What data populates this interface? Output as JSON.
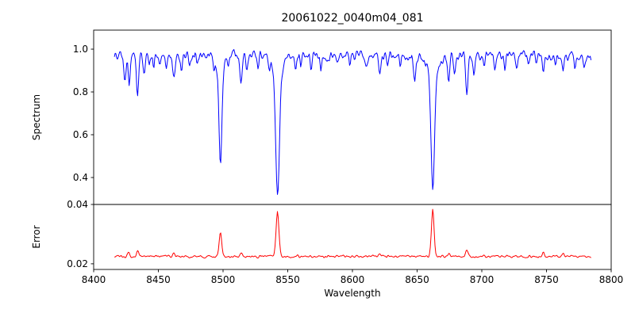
{
  "figure": {
    "title": "20061022_0040m04_081"
  },
  "chart_data": {
    "type": "line",
    "title": "20061022_0040m04_081",
    "xlabel": "Wavelength",
    "x_axis_range": [
      8400,
      8800
    ],
    "x_range": [
      8416,
      8785
    ],
    "x_ticks": [
      8400,
      8450,
      8500,
      8550,
      8600,
      8650,
      8700,
      8750,
      8800
    ],
    "x_tick_labels": [
      "8400",
      "8450",
      "8500",
      "8550",
      "8600",
      "8650",
      "8700",
      "8750",
      "8800"
    ],
    "grid": false,
    "legend": "none",
    "panels": [
      {
        "name": "spectrum",
        "ylabel": "Spectrum",
        "color": "#0000ff",
        "ylim": [
          0.274,
          1.089
        ],
        "y_ticks": [
          1.0,
          0.8,
          0.6,
          0.4
        ],
        "y_tick_labels": [
          "1.0",
          "0.8",
          "0.6",
          "0.4"
        ],
        "continuum": 0.97,
        "noise": 0.03,
        "absorption_lines": [
          {
            "c": 8498.0,
            "d": 0.42,
            "w": 1.1
          },
          {
            "c": 8498.0,
            "d": 0.07,
            "w": 3.0
          },
          {
            "c": 8542.1,
            "d": 0.56,
            "w": 1.4
          },
          {
            "c": 8542.1,
            "d": 0.1,
            "w": 4.0
          },
          {
            "c": 8662.1,
            "d": 0.55,
            "w": 1.3
          },
          {
            "c": 8662.1,
            "d": 0.1,
            "w": 4.0
          },
          {
            "c": 8424.0,
            "d": 0.1,
            "w": 0.8
          },
          {
            "c": 8427.5,
            "d": 0.14,
            "w": 0.7
          },
          {
            "c": 8434.0,
            "d": 0.18,
            "w": 0.9
          },
          {
            "c": 8439.0,
            "d": 0.08,
            "w": 0.7
          },
          {
            "c": 8443.0,
            "d": 0.05,
            "w": 0.6
          },
          {
            "c": 8446.5,
            "d": 0.07,
            "w": 0.6
          },
          {
            "c": 8451.0,
            "d": 0.05,
            "w": 0.6
          },
          {
            "c": 8456.0,
            "d": 0.07,
            "w": 0.7
          },
          {
            "c": 8462.0,
            "d": 0.11,
            "w": 0.8
          },
          {
            "c": 8468.0,
            "d": 0.08,
            "w": 0.7
          },
          {
            "c": 8474.0,
            "d": 0.06,
            "w": 0.6
          },
          {
            "c": 8480.0,
            "d": 0.04,
            "w": 0.6
          },
          {
            "c": 8493.0,
            "d": 0.05,
            "w": 0.6
          },
          {
            "c": 8504.0,
            "d": 0.04,
            "w": 0.6
          },
          {
            "c": 8514.0,
            "d": 0.12,
            "w": 0.9
          },
          {
            "c": 8518.5,
            "d": 0.08,
            "w": 0.7
          },
          {
            "c": 8527.0,
            "d": 0.06,
            "w": 0.7
          },
          {
            "c": 8536.0,
            "d": 0.04,
            "w": 0.6
          },
          {
            "c": 8556.0,
            "d": 0.07,
            "w": 0.7
          },
          {
            "c": 8560.0,
            "d": 0.05,
            "w": 0.6
          },
          {
            "c": 8568.0,
            "d": 0.06,
            "w": 0.7
          },
          {
            "c": 8575.5,
            "d": 0.07,
            "w": 0.7
          },
          {
            "c": 8582.0,
            "d": 0.05,
            "w": 0.6
          },
          {
            "c": 8589.0,
            "d": 0.04,
            "w": 0.6
          },
          {
            "c": 8598.0,
            "d": 0.04,
            "w": 0.6
          },
          {
            "c": 8611.0,
            "d": 0.06,
            "w": 0.7
          },
          {
            "c": 8621.0,
            "d": 0.09,
            "w": 0.8
          },
          {
            "c": 8627.0,
            "d": 0.05,
            "w": 0.6
          },
          {
            "c": 8637.0,
            "d": 0.04,
            "w": 0.6
          },
          {
            "c": 8648.0,
            "d": 0.11,
            "w": 0.9
          },
          {
            "c": 8674.5,
            "d": 0.12,
            "w": 0.8
          },
          {
            "c": 8679.0,
            "d": 0.08,
            "w": 0.7
          },
          {
            "c": 8688.5,
            "d": 0.19,
            "w": 0.9
          },
          {
            "c": 8694.0,
            "d": 0.08,
            "w": 0.7
          },
          {
            "c": 8702.0,
            "d": 0.05,
            "w": 0.6
          },
          {
            "c": 8710.0,
            "d": 0.06,
            "w": 0.7
          },
          {
            "c": 8718.0,
            "d": 0.07,
            "w": 0.7
          },
          {
            "c": 8727.0,
            "d": 0.04,
            "w": 0.6
          },
          {
            "c": 8736.0,
            "d": 0.05,
            "w": 0.7
          },
          {
            "c": 8742.0,
            "d": 0.04,
            "w": 0.6
          },
          {
            "c": 8747.5,
            "d": 0.07,
            "w": 0.7
          },
          {
            "c": 8757.0,
            "d": 0.05,
            "w": 0.6
          },
          {
            "c": 8763.0,
            "d": 0.07,
            "w": 0.7
          },
          {
            "c": 8772.0,
            "d": 0.06,
            "w": 0.7
          },
          {
            "c": 8779.0,
            "d": 0.05,
            "w": 0.6
          }
        ]
      },
      {
        "name": "error",
        "ylabel": "Error",
        "color": "#ff0000",
        "ylim": [
          0.0181,
          0.04
        ],
        "y_ticks": [
          0.04,
          0.02
        ],
        "y_tick_labels": [
          "0.04",
          "0.02"
        ],
        "baseline": 0.0225,
        "noise": 0.0006,
        "peaks": [
          {
            "c": 8498.0,
            "h": 0.0078,
            "w": 1.0
          },
          {
            "c": 8542.1,
            "h": 0.0152,
            "w": 1.1
          },
          {
            "c": 8662.1,
            "h": 0.016,
            "w": 1.0
          },
          {
            "c": 8427.0,
            "h": 0.0015,
            "w": 0.8
          },
          {
            "c": 8434.0,
            "h": 0.002,
            "w": 0.9
          },
          {
            "c": 8462.0,
            "h": 0.0012,
            "w": 0.8
          },
          {
            "c": 8514.0,
            "h": 0.0015,
            "w": 0.8
          },
          {
            "c": 8621.0,
            "h": 0.001,
            "w": 0.8
          },
          {
            "c": 8674.5,
            "h": 0.0012,
            "w": 0.8
          },
          {
            "c": 8688.5,
            "h": 0.002,
            "w": 0.9
          },
          {
            "c": 8747.5,
            "h": 0.0012,
            "w": 0.8
          },
          {
            "c": 8763.0,
            "h": 0.001,
            "w": 0.8
          }
        ]
      }
    ]
  }
}
